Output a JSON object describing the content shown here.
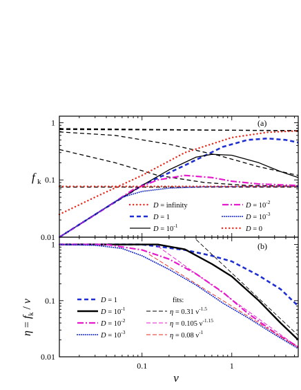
{
  "chart_data": [
    {
      "type": "line",
      "panel_label": "(a)",
      "ylabel": "f_k",
      "xscale": "log",
      "yscale": "log",
      "xlim": [
        0.012,
        5.5
      ],
      "ylim": [
        0.01,
        1.3
      ],
      "x_ticks": [
        {
          "v": 0.01,
          "label": "0.01"
        },
        {
          "v": 0.1,
          "label": "0.1"
        },
        {
          "v": 1,
          "label": "1"
        }
      ],
      "y_ticks": [
        {
          "v": 0.01,
          "label": "0.01"
        },
        {
          "v": 0.1,
          "label": "0.1"
        },
        {
          "v": 1,
          "label": "1"
        }
      ],
      "reference_lines": [
        {
          "style": "dash",
          "color": "#000000",
          "x": [
            0.012,
            5.5
          ],
          "y": [
            0.79,
            0.72
          ]
        },
        {
          "style": "dash",
          "color": "#000000",
          "x": [
            0.012,
            5.5
          ],
          "y": [
            0.76,
            0.73
          ]
        },
        {
          "style": "dash",
          "color": "#000000",
          "x": [
            0.012,
            0.05,
            0.2,
            0.7,
            2.0,
            5.5
          ],
          "y": [
            0.69,
            0.6,
            0.42,
            0.27,
            0.17,
            0.12
          ]
        },
        {
          "style": "dash",
          "color": "#000000",
          "x": [
            0.012,
            0.05,
            0.15,
            0.5,
            1.5,
            5.5
          ],
          "y": [
            0.34,
            0.2,
            0.12,
            0.09,
            0.08,
            0.078
          ]
        },
        {
          "style": "dash",
          "color": "#000000",
          "x": [
            0.012,
            5.5
          ],
          "y": [
            0.075,
            0.075
          ]
        }
      ],
      "series": [
        {
          "name": "D = infinity",
          "style": "dot",
          "color": "#e8291c",
          "x": [
            0.012,
            0.03,
            0.1,
            0.3,
            1.0,
            2.5,
            5.5
          ],
          "y": [
            0.025,
            0.05,
            0.12,
            0.3,
            0.55,
            0.68,
            0.72
          ]
        },
        {
          "name": "D = 1",
          "style": "dash-thick",
          "color": "#1f2fd1",
          "x": [
            0.012,
            0.04,
            0.1,
            0.3,
            0.8,
            1.5,
            2.5,
            4.0,
            5.5
          ],
          "y": [
            0.01,
            0.033,
            0.08,
            0.18,
            0.38,
            0.5,
            0.53,
            0.5,
            0.45
          ]
        },
        {
          "name": "D = 10^-1",
          "style": "solid",
          "color": "#000000",
          "x": [
            0.012,
            0.04,
            0.1,
            0.2,
            0.4,
            0.6,
            1.0,
            2.0,
            3.5,
            5.5
          ],
          "y": [
            0.01,
            0.033,
            0.08,
            0.15,
            0.25,
            0.28,
            0.27,
            0.2,
            0.14,
            0.11
          ]
        },
        {
          "name": "D = 10^-2",
          "style": "dashdot",
          "color": "#e619cc",
          "x": [
            0.012,
            0.04,
            0.08,
            0.15,
            0.3,
            0.6,
            1.0,
            2.0,
            5.5
          ],
          "y": [
            0.01,
            0.033,
            0.068,
            0.1,
            0.12,
            0.11,
            0.095,
            0.085,
            0.08
          ]
        },
        {
          "name": "D = 10^-3",
          "style": "dot-dense",
          "color": "#1f2fd1",
          "x": [
            0.012,
            0.03,
            0.06,
            0.1,
            0.2,
            0.5,
            1.5,
            5.5
          ],
          "y": [
            0.01,
            0.025,
            0.05,
            0.063,
            0.072,
            0.076,
            0.077,
            0.077
          ]
        },
        {
          "name": "D = 0",
          "style": "dot",
          "color": "#e8291c",
          "x": [
            0.012,
            5.5
          ],
          "y": [
            0.077,
            0.077
          ]
        }
      ],
      "legend": {
        "placement": "lower-right",
        "entries": [
          {
            "pre": "D",
            "rest": " = infinity",
            "sup": ""
          },
          {
            "pre": "D",
            "rest": " = 10",
            "sup": "-2"
          },
          {
            "pre": "D",
            "rest": " = 1",
            "sup": ""
          },
          {
            "pre": "D",
            "rest": " = 10",
            "sup": "-3"
          },
          {
            "pre": "D",
            "rest": " = 10",
            "sup": "-1"
          },
          {
            "pre": "D",
            "rest": " = 0",
            "sup": ""
          }
        ]
      }
    },
    {
      "type": "line",
      "panel_label": "(b)",
      "ylabel": "η = f_k / ν",
      "xlabel": "ν",
      "xscale": "log",
      "yscale": "log",
      "xlim": [
        0.012,
        5.5
      ],
      "ylim": [
        0.01,
        1.35
      ],
      "x_ticks": [
        {
          "v": 0.1,
          "label": "0.1"
        },
        {
          "v": 1,
          "label": "1"
        }
      ],
      "y_ticks": [
        {
          "v": 0.01,
          "label": "0.01"
        },
        {
          "v": 0.1,
          "label": "0.1"
        },
        {
          "v": 1,
          "label": "1"
        }
      ],
      "series": [
        {
          "name": "D = 1",
          "style": "dash-thick",
          "color": "#1f2fd1",
          "x": [
            0.012,
            0.1,
            0.3,
            0.6,
            1.0,
            2.0,
            3.5,
            5.5
          ],
          "y": [
            1.0,
            1.0,
            0.8,
            0.63,
            0.5,
            0.28,
            0.16,
            0.08
          ]
        },
        {
          "name": "D = 10^-1",
          "style": "solid-thick",
          "color": "#000000",
          "x": [
            0.012,
            0.08,
            0.15,
            0.3,
            0.6,
            1.0,
            2.0,
            3.5,
            5.5
          ],
          "y": [
            1.0,
            1.0,
            1.0,
            0.82,
            0.45,
            0.27,
            0.1,
            0.04,
            0.02
          ]
        },
        {
          "name": "D = 10^-2",
          "style": "dashdot",
          "color": "#e619cc",
          "x": [
            0.012,
            0.04,
            0.1,
            0.2,
            0.4,
            0.8,
            1.5,
            3.0,
            5.5
          ],
          "y": [
            1.0,
            1.0,
            0.8,
            0.55,
            0.3,
            0.14,
            0.06,
            0.027,
            0.015
          ]
        },
        {
          "name": "D = 10^-3",
          "style": "dot-dense",
          "color": "#1f2fd1",
          "x": [
            0.012,
            0.03,
            0.06,
            0.1,
            0.2,
            0.4,
            0.8,
            1.5,
            3.0,
            5.5
          ],
          "y": [
            1.0,
            0.97,
            0.85,
            0.63,
            0.36,
            0.19,
            0.09,
            0.05,
            0.025,
            0.014
          ]
        },
        {
          "name": "η = 0.31 ν^-1.5",
          "style": "dash-thin",
          "color": "#000000",
          "fit": {
            "a": 0.31,
            "p": 1.5
          },
          "x_range": [
            0.3,
            5.5
          ]
        },
        {
          "name": "η = 0.105 ν^-1.15",
          "style": "dash-thin",
          "color": "#e619cc",
          "fit": {
            "a": 0.105,
            "p": 1.15
          },
          "x_range": [
            0.15,
            5.5
          ]
        },
        {
          "name": "η = 0.08 ν^-1",
          "style": "dash-thin",
          "color": "#e8291c",
          "fit": {
            "a": 0.08,
            "p": 1.0
          },
          "x_range": [
            0.12,
            5.5
          ]
        }
      ],
      "legend": {
        "placement": "lower-left",
        "fits_heading": "fits:",
        "left": [
          {
            "pre": "D",
            "rest": " = 1",
            "sup": ""
          },
          {
            "pre": "D",
            "rest": " = 10",
            "sup": "-1"
          },
          {
            "pre": "D",
            "rest": " = 10",
            "sup": "-2"
          },
          {
            "pre": "D",
            "rest": " = 10",
            "sup": "-3"
          }
        ],
        "right": [
          {
            "pre": "η",
            "rest": " = 0.31 ν",
            "sup": "-1.5"
          },
          {
            "pre": "η",
            "rest": " = 0.105 ν",
            "sup": "-1.15"
          },
          {
            "pre": "η",
            "rest": " = 0.08 ν",
            "sup": "-1"
          }
        ]
      }
    }
  ]
}
